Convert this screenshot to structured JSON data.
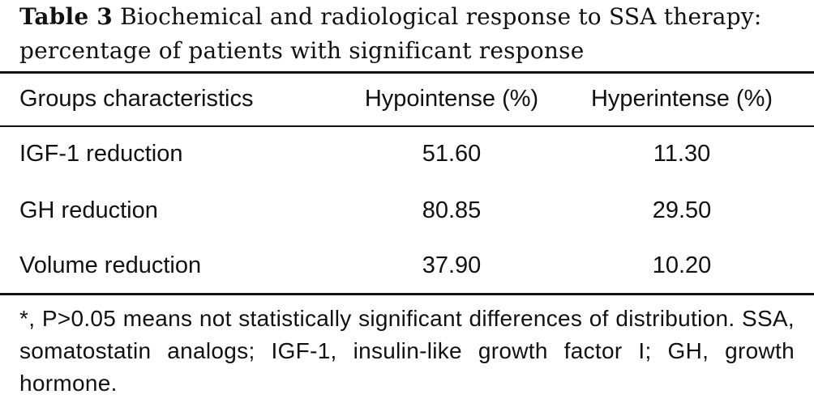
{
  "caption": {
    "label": "Table 3",
    "text": "Biochemical and radiological response to SSA therapy: percentage of patients with significant response"
  },
  "table": {
    "headers": [
      "Groups characteristics",
      "Hypointense (%)",
      "Hyperintense (%)"
    ],
    "rows": [
      [
        "IGF-1 reduction",
        "51.60",
        "11.30"
      ],
      [
        "GH reduction",
        "80.85",
        "29.50"
      ],
      [
        "Volume reduction",
        "37.90",
        "10.20"
      ]
    ]
  },
  "footnote": "*, P>0.05 means not statistically significant differences of distribution. SSA, somatostatin analogs; IGF-1, insulin-like growth factor I; GH, growth hormone."
}
